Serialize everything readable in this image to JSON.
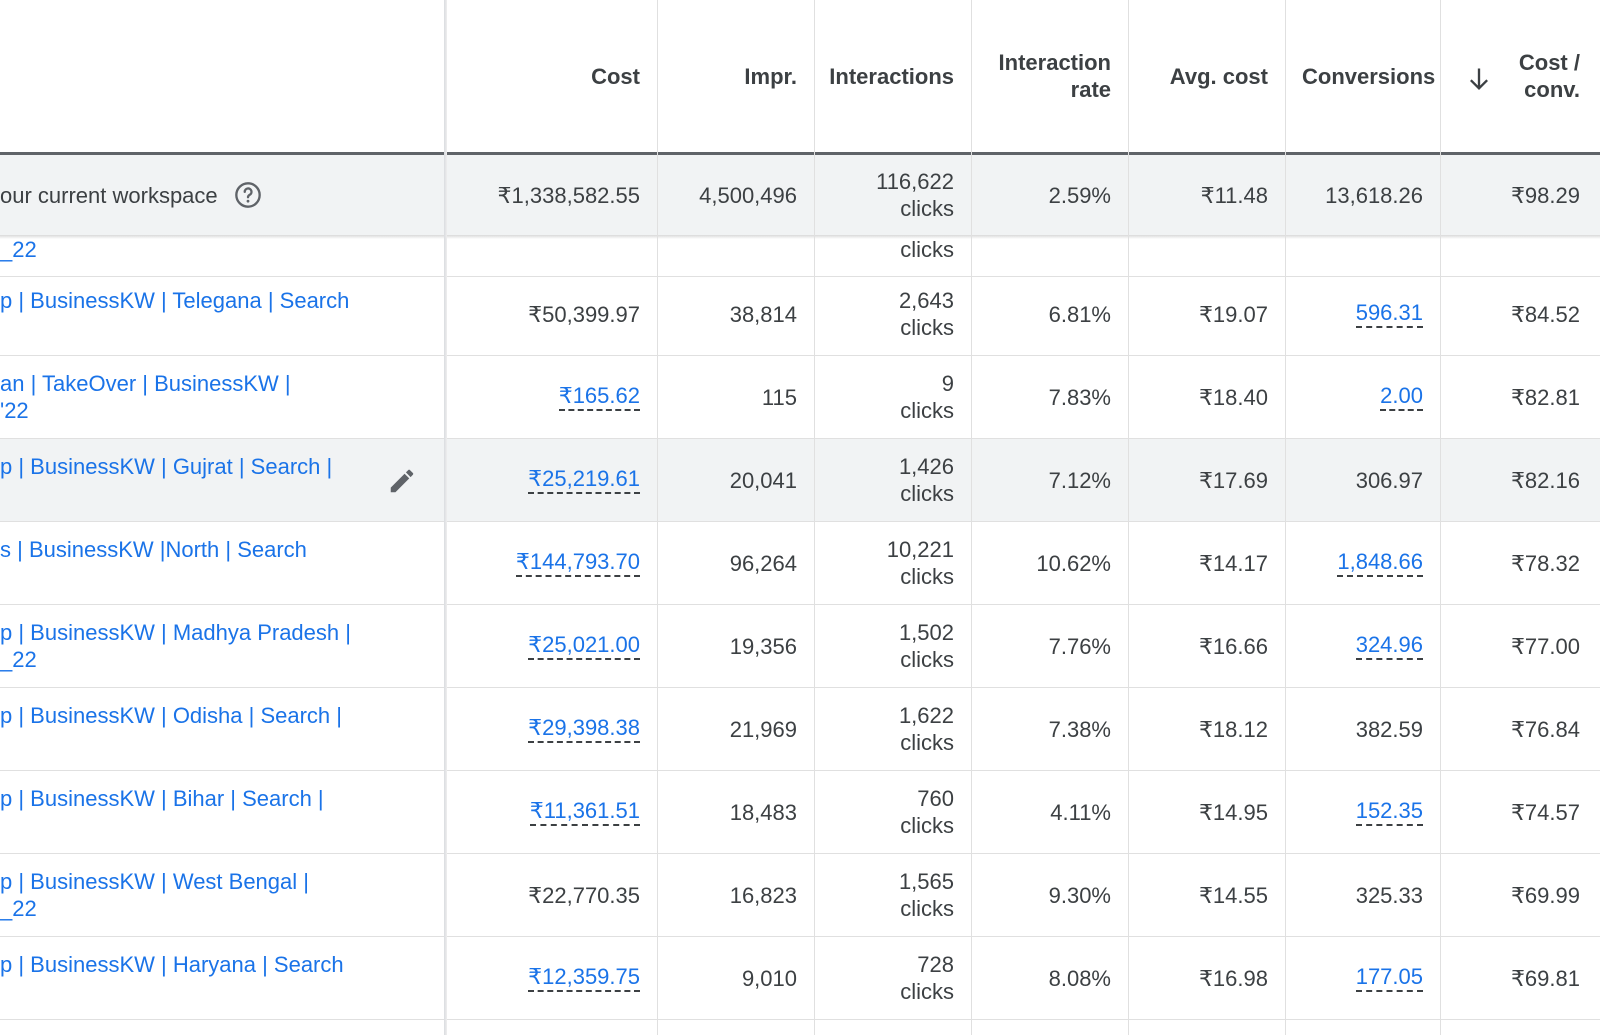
{
  "columns": [
    {
      "key": "cost",
      "label": "Cost"
    },
    {
      "key": "impr",
      "label": "Impr."
    },
    {
      "key": "interactions",
      "label": "Interactions"
    },
    {
      "key": "interaction_rate",
      "label_line1": "Interaction",
      "label_line2": "rate"
    },
    {
      "key": "avg_cost",
      "label": "Avg. cost"
    },
    {
      "key": "conversions",
      "label": "Conversions"
    },
    {
      "key": "cost_conv",
      "label_line1": "Cost /",
      "label_line2": "conv."
    }
  ],
  "sort_icon": "arrow-down-icon",
  "total": {
    "name": "our current workspace",
    "help_icon": "help-circle-icon",
    "cost": "₹1,338,582.55",
    "impr": "4,500,496",
    "interactions": "116,622",
    "interactions_unit": "clicks",
    "interaction_rate": "2.59%",
    "avg_cost": "₹11.48",
    "conversions": "13,618.26",
    "cost_conv": "₹98.29"
  },
  "partial_row": {
    "name_line2": "_22",
    "interactions_unit": "clicks"
  },
  "rows": [
    {
      "name1": "p | BusinessKW | Telegana | Search",
      "name2": "",
      "cost": "₹50,399.97",
      "cost_link": false,
      "impr": "38,814",
      "interactions": "2,643",
      "unit": "clicks",
      "rate": "6.81%",
      "avg": "₹19.07",
      "conv": "596.31",
      "conv_link": true,
      "cpc": "₹84.52"
    },
    {
      "name1": "an | TakeOver | BusinessKW |",
      "name2": "'22",
      "cost": "₹165.62",
      "cost_link": true,
      "impr": "115",
      "interactions": "9",
      "unit": "clicks",
      "rate": "7.83%",
      "avg": "₹18.40",
      "conv": "2.00",
      "conv_link": true,
      "cpc": "₹82.81"
    },
    {
      "name1": "p | BusinessKW | Gujrat | Search |",
      "name2": "",
      "cost": "₹25,219.61",
      "cost_link": true,
      "impr": "20,041",
      "interactions": "1,426",
      "unit": "clicks",
      "rate": "7.12%",
      "avg": "₹17.69",
      "conv": "306.97",
      "conv_link": false,
      "cpc": "₹82.16",
      "hover": true
    },
    {
      "name1": "s | BusinessKW |North | Search",
      "name2": "",
      "cost": "₹144,793.70",
      "cost_link": true,
      "impr": "96,264",
      "interactions": "10,221",
      "unit": "clicks",
      "rate": "10.62%",
      "avg": "₹14.17",
      "conv": "1,848.66",
      "conv_link": true,
      "cpc": "₹78.32"
    },
    {
      "name1": "p | BusinessKW | Madhya Pradesh |",
      "name2": "_22",
      "cost": "₹25,021.00",
      "cost_link": true,
      "impr": "19,356",
      "interactions": "1,502",
      "unit": "clicks",
      "rate": "7.76%",
      "avg": "₹16.66",
      "conv": "324.96",
      "conv_link": true,
      "cpc": "₹77.00"
    },
    {
      "name1": "p | BusinessKW | Odisha | Search |",
      "name2": "",
      "cost": "₹29,398.38",
      "cost_link": true,
      "impr": "21,969",
      "interactions": "1,622",
      "unit": "clicks",
      "rate": "7.38%",
      "avg": "₹18.12",
      "conv": "382.59",
      "conv_link": false,
      "cpc": "₹76.84"
    },
    {
      "name1": "p | BusinessKW | Bihar | Search |",
      "name2": "",
      "cost": "₹11,361.51",
      "cost_link": true,
      "impr": "18,483",
      "interactions": "760",
      "unit": "clicks",
      "rate": "4.11%",
      "avg": "₹14.95",
      "conv": "152.35",
      "conv_link": true,
      "cpc": "₹74.57"
    },
    {
      "name1": "p | BusinessKW | West Bengal |",
      "name2": "_22",
      "cost": "₹22,770.35",
      "cost_link": false,
      "impr": "16,823",
      "interactions": "1,565",
      "unit": "clicks",
      "rate": "9.30%",
      "avg": "₹14.55",
      "conv": "325.33",
      "conv_link": false,
      "cpc": "₹69.99"
    },
    {
      "name1": "p | BusinessKW | Haryana | Search",
      "name2": "",
      "cost": "₹12,359.75",
      "cost_link": true,
      "impr": "9,010",
      "interactions": "728",
      "unit": "clicks",
      "rate": "8.08%",
      "avg": "₹16.98",
      "conv": "177.05",
      "conv_link": true,
      "cpc": "₹69.81"
    }
  ],
  "edit_icon": "pencil-icon",
  "colors": {
    "link": "#1a73e8",
    "text": "#3c4043",
    "header_border": "#5f6368",
    "row_hover": "#f1f3f4"
  }
}
